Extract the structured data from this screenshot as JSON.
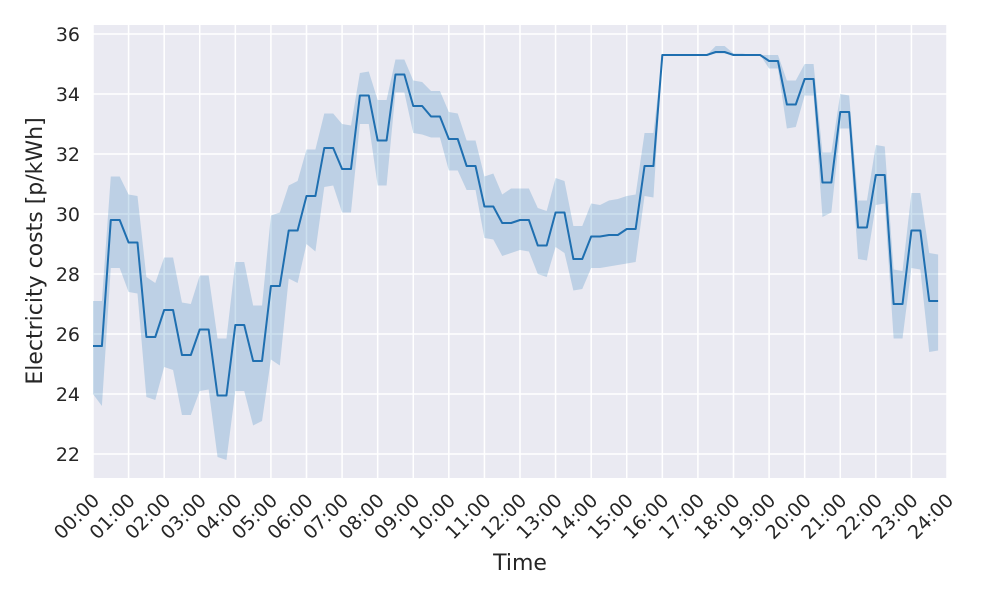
{
  "chart_data": {
    "type": "line",
    "title": "",
    "xlabel": "Time",
    "ylabel": "Electricity costs [p/kWh]",
    "xlim": [
      0,
      24
    ],
    "ylim": [
      21.2,
      36.3
    ],
    "x_ticks": [
      "00:00",
      "01:00",
      "02:00",
      "03:00",
      "04:00",
      "05:00",
      "06:00",
      "07:00",
      "08:00",
      "09:00",
      "10:00",
      "11:00",
      "12:00",
      "13:00",
      "14:00",
      "15:00",
      "16:00",
      "17:00",
      "18:00",
      "19:00",
      "20:00",
      "21:00",
      "22:00",
      "23:00",
      "24:00"
    ],
    "y_ticks": [
      22,
      24,
      26,
      28,
      30,
      32,
      34,
      36
    ],
    "grid": true,
    "step_hours": 0.25,
    "series": [
      {
        "values": [
          25.6,
          25.6,
          29.8,
          29.8,
          29.05,
          29.05,
          25.9,
          25.9,
          26.8,
          26.8,
          25.3,
          25.3,
          26.15,
          26.15,
          23.95,
          23.95,
          26.3,
          26.3,
          25.1,
          25.1,
          27.6,
          27.6,
          29.45,
          29.45,
          30.6,
          30.6,
          32.2,
          32.2,
          31.5,
          31.5,
          33.95,
          33.95,
          32.45,
          32.45,
          34.65,
          34.65,
          33.6,
          33.6,
          33.25,
          33.25,
          32.5,
          32.5,
          31.6,
          31.6,
          30.25,
          30.25,
          29.7,
          29.7,
          29.8,
          29.8,
          28.95,
          28.95,
          30.05,
          30.05,
          28.5,
          28.5,
          29.25,
          29.25,
          29.3,
          29.3,
          29.5,
          29.5,
          31.6,
          31.6,
          35.3,
          35.3,
          35.3,
          35.3,
          35.3,
          35.3,
          35.4,
          35.4,
          35.3,
          35.3,
          35.3,
          35.3,
          35.1,
          35.1,
          33.65,
          33.65,
          34.5,
          34.5,
          31.05,
          31.05,
          33.4,
          33.4,
          29.55,
          29.55,
          31.3,
          31.3,
          27.0,
          27.0,
          29.45,
          29.45,
          27.1,
          27.1
        ],
        "lower": [
          24.0,
          23.6,
          28.2,
          28.2,
          27.4,
          27.35,
          23.9,
          23.8,
          24.9,
          24.8,
          23.3,
          23.3,
          24.1,
          24.15,
          21.9,
          21.8,
          24.1,
          24.1,
          22.95,
          23.1,
          25.15,
          24.95,
          27.85,
          27.7,
          29.0,
          28.75,
          30.9,
          30.95,
          30.05,
          30.05,
          33.0,
          33.0,
          30.95,
          30.95,
          34.05,
          34.05,
          32.7,
          32.65,
          32.55,
          32.55,
          31.45,
          31.45,
          30.8,
          30.8,
          29.2,
          29.15,
          28.6,
          28.7,
          28.8,
          28.75,
          28.0,
          27.9,
          28.9,
          28.7,
          27.45,
          27.5,
          28.2,
          28.2,
          28.25,
          28.3,
          28.35,
          28.4,
          30.6,
          30.55,
          35.3,
          35.3,
          35.3,
          35.3,
          35.3,
          35.3,
          35.35,
          35.35,
          35.3,
          35.3,
          35.3,
          35.3,
          34.85,
          34.85,
          32.85,
          32.9,
          33.95,
          33.95,
          29.9,
          30.05,
          32.85,
          32.85,
          28.5,
          28.45,
          30.3,
          30.35,
          25.85,
          25.85,
          28.2,
          28.15,
          25.4,
          25.45
        ],
        "upper": [
          27.1,
          27.1,
          31.25,
          31.25,
          30.65,
          30.6,
          27.9,
          27.7,
          28.55,
          28.55,
          27.05,
          27.0,
          27.95,
          27.95,
          25.85,
          25.85,
          28.4,
          28.4,
          26.95,
          26.95,
          29.95,
          30.05,
          30.95,
          31.1,
          32.15,
          32.15,
          33.35,
          33.35,
          33.0,
          32.95,
          34.7,
          34.75,
          33.8,
          33.8,
          35.15,
          35.15,
          34.45,
          34.4,
          34.1,
          34.1,
          33.4,
          33.35,
          32.45,
          32.45,
          31.25,
          31.35,
          30.65,
          30.85,
          30.85,
          30.85,
          30.2,
          30.1,
          31.2,
          31.1,
          29.6,
          29.6,
          30.35,
          30.3,
          30.45,
          30.5,
          30.6,
          30.65,
          32.7,
          32.7,
          35.3,
          35.3,
          35.3,
          35.3,
          35.3,
          35.3,
          35.6,
          35.6,
          35.35,
          35.35,
          35.3,
          35.3,
          35.3,
          35.3,
          34.45,
          34.45,
          35.0,
          35.0,
          32.05,
          32.05,
          34.0,
          33.95,
          30.45,
          30.45,
          32.3,
          32.25,
          28.15,
          28.1,
          30.7,
          30.7,
          28.7,
          28.65
        ]
      }
    ],
    "colors": {
      "line": "#1f6fb0",
      "band": "#1f77b4",
      "plot_bg": "#eaeaf2",
      "grid": "#ffffff"
    }
  }
}
